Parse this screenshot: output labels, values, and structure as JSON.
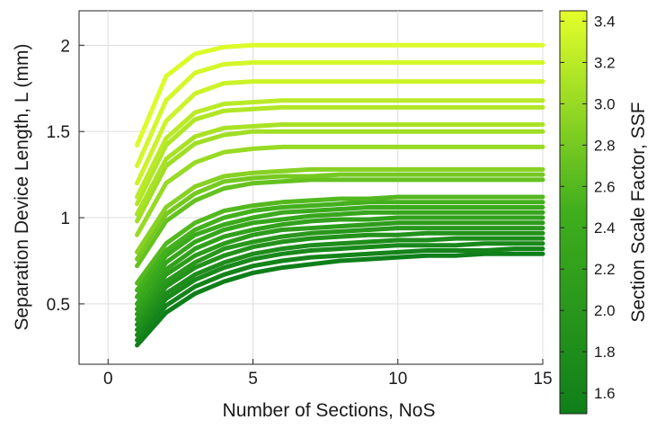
{
  "chart_data": {
    "type": "line",
    "xlabel": "Number of Sections, NoS",
    "ylabel": "Separation Device Length, L (mm)",
    "xlim": [
      -1,
      15
    ],
    "ylim": [
      0.15,
      2.2
    ],
    "xticks": [
      0,
      5,
      10,
      15
    ],
    "xtick_labels": [
      "0",
      "5",
      "10",
      "15"
    ],
    "yticks": [
      0.5,
      1,
      1.5,
      2
    ],
    "ytick_labels": [
      "0.5",
      "1",
      "1.5",
      "2"
    ],
    "grid": true,
    "x": [
      1,
      2,
      3,
      4,
      5,
      6,
      7,
      8,
      9,
      10,
      11,
      12,
      13,
      14,
      15
    ],
    "colorbar": {
      "label": "Section Scale Factor, SSF",
      "range": [
        1.5,
        3.45
      ],
      "ticks": [
        1.6,
        1.8,
        2.0,
        2.2,
        2.4,
        2.6,
        2.8,
        3.0,
        3.2,
        3.4
      ],
      "tick_labels": [
        "1.6",
        "1.8",
        "2.0",
        "2.2",
        "2.4",
        "2.6",
        "2.8",
        "3.0",
        "3.2",
        "3.4"
      ],
      "color_low": "#0f7f1a",
      "color_high": "#e4ff2a"
    },
    "series": [
      {
        "ssf": 1.5,
        "values": [
          0.26,
          0.45,
          0.56,
          0.63,
          0.68,
          0.71,
          0.73,
          0.75,
          0.76,
          0.77,
          0.78,
          0.78,
          0.79,
          0.79,
          0.79
        ]
      },
      {
        "ssf": 1.6,
        "values": [
          0.29,
          0.49,
          0.6,
          0.67,
          0.72,
          0.75,
          0.77,
          0.78,
          0.79,
          0.8,
          0.81,
          0.81,
          0.81,
          0.82,
          0.82
        ]
      },
      {
        "ssf": 1.7,
        "values": [
          0.32,
          0.53,
          0.64,
          0.71,
          0.76,
          0.79,
          0.81,
          0.82,
          0.83,
          0.84,
          0.84,
          0.84,
          0.85,
          0.85,
          0.85
        ]
      },
      {
        "ssf": 1.8,
        "values": [
          0.35,
          0.56,
          0.67,
          0.74,
          0.79,
          0.82,
          0.84,
          0.85,
          0.86,
          0.87,
          0.87,
          0.88,
          0.88,
          0.88,
          0.88
        ]
      },
      {
        "ssf": 1.9,
        "values": [
          0.38,
          0.6,
          0.71,
          0.78,
          0.83,
          0.86,
          0.88,
          0.89,
          0.9,
          0.9,
          0.91,
          0.91,
          0.91,
          0.91,
          0.91
        ]
      },
      {
        "ssf": 2.0,
        "values": [
          0.41,
          0.63,
          0.74,
          0.82,
          0.86,
          0.89,
          0.91,
          0.92,
          0.93,
          0.94,
          0.94,
          0.94,
          0.94,
          0.94,
          0.94
        ]
      },
      {
        "ssf": 2.1,
        "values": [
          0.44,
          0.67,
          0.78,
          0.85,
          0.9,
          0.93,
          0.94,
          0.95,
          0.96,
          0.97,
          0.97,
          0.97,
          0.97,
          0.97,
          0.97
        ]
      },
      {
        "ssf": 2.2,
        "values": [
          0.47,
          0.7,
          0.82,
          0.89,
          0.93,
          0.96,
          0.98,
          0.99,
          0.99,
          1.0,
          1.0,
          1.0,
          1.0,
          1.0,
          1.0
        ]
      },
      {
        "ssf": 2.3,
        "values": [
          0.5,
          0.74,
          0.86,
          0.93,
          0.97,
          0.99,
          1.01,
          1.02,
          1.03,
          1.03,
          1.03,
          1.03,
          1.03,
          1.03,
          1.03
        ]
      },
      {
        "ssf": 2.4,
        "values": [
          0.54,
          0.78,
          0.9,
          0.96,
          1.0,
          1.03,
          1.04,
          1.05,
          1.06,
          1.06,
          1.06,
          1.06,
          1.06,
          1.06,
          1.06
        ]
      },
      {
        "ssf": 2.5,
        "values": [
          0.58,
          0.81,
          0.93,
          1.0,
          1.04,
          1.06,
          1.07,
          1.08,
          1.09,
          1.09,
          1.09,
          1.09,
          1.09,
          1.09,
          1.09
        ]
      },
      {
        "ssf": 2.6,
        "values": [
          0.62,
          0.85,
          0.97,
          1.04,
          1.07,
          1.09,
          1.1,
          1.11,
          1.11,
          1.12,
          1.12,
          1.12,
          1.12,
          1.12,
          1.12
        ]
      },
      {
        "ssf": 2.7,
        "values": [
          0.72,
          0.98,
          1.1,
          1.17,
          1.2,
          1.21,
          1.22,
          1.22,
          1.22,
          1.22,
          1.22,
          1.22,
          1.22,
          1.22,
          1.22
        ]
      },
      {
        "ssf": 2.8,
        "values": [
          0.76,
          1.02,
          1.14,
          1.21,
          1.23,
          1.24,
          1.24,
          1.25,
          1.25,
          1.25,
          1.25,
          1.25,
          1.25,
          1.25,
          1.25
        ]
      },
      {
        "ssf": 2.9,
        "values": [
          0.8,
          1.06,
          1.18,
          1.24,
          1.26,
          1.27,
          1.28,
          1.28,
          1.28,
          1.28,
          1.28,
          1.28,
          1.28,
          1.28,
          1.28
        ]
      },
      {
        "ssf": 3.0,
        "values": [
          0.9,
          1.2,
          1.32,
          1.38,
          1.4,
          1.41,
          1.41,
          1.41,
          1.41,
          1.41,
          1.41,
          1.41,
          1.41,
          1.41,
          1.41
        ]
      },
      {
        "ssf": 3.05,
        "values": [
          0.98,
          1.3,
          1.43,
          1.48,
          1.5,
          1.5,
          1.5,
          1.5,
          1.5,
          1.5,
          1.5,
          1.5,
          1.5,
          1.5,
          1.5
        ]
      },
      {
        "ssf": 3.1,
        "values": [
          1.02,
          1.34,
          1.47,
          1.52,
          1.53,
          1.54,
          1.54,
          1.54,
          1.54,
          1.54,
          1.54,
          1.54,
          1.54,
          1.54,
          1.54
        ]
      },
      {
        "ssf": 3.15,
        "values": [
          1.08,
          1.42,
          1.57,
          1.62,
          1.63,
          1.64,
          1.64,
          1.64,
          1.64,
          1.64,
          1.64,
          1.64,
          1.64,
          1.64,
          1.64
        ]
      },
      {
        "ssf": 3.2,
        "values": [
          1.12,
          1.46,
          1.61,
          1.66,
          1.67,
          1.68,
          1.68,
          1.68,
          1.68,
          1.68,
          1.68,
          1.68,
          1.68,
          1.68,
          1.68
        ]
      },
      {
        "ssf": 3.3,
        "values": [
          1.2,
          1.56,
          1.72,
          1.78,
          1.79,
          1.79,
          1.79,
          1.79,
          1.79,
          1.79,
          1.79,
          1.79,
          1.79,
          1.79,
          1.79
        ]
      },
      {
        "ssf": 3.35,
        "values": [
          1.3,
          1.68,
          1.84,
          1.89,
          1.9,
          1.9,
          1.9,
          1.9,
          1.9,
          1.9,
          1.9,
          1.9,
          1.9,
          1.9,
          1.9
        ]
      },
      {
        "ssf": 3.4,
        "values": [
          1.42,
          1.82,
          1.95,
          1.99,
          2.0,
          2.0,
          2.0,
          2.0,
          2.0,
          2.0,
          2.0,
          2.0,
          2.0,
          2.0,
          2.0
        ]
      }
    ]
  }
}
